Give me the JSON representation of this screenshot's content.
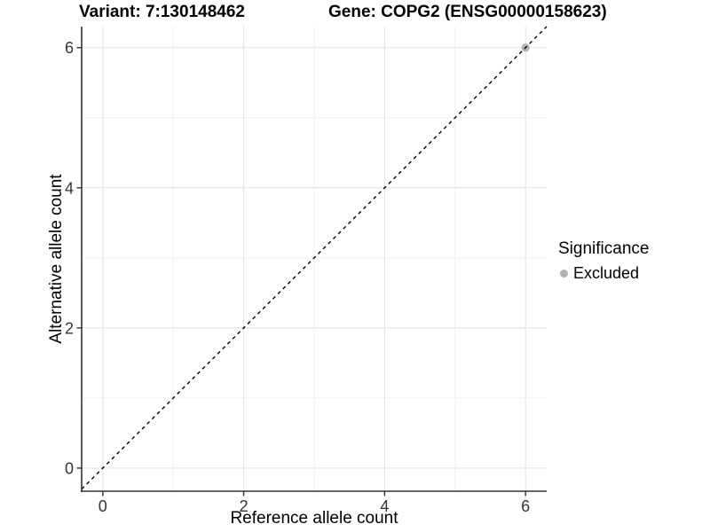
{
  "chart_data": {
    "type": "scatter",
    "title_left": "Variant: 7:130148462",
    "title_right": "Gene: COPG2 (ENSG00000158623)",
    "xlabel": "Reference allele count",
    "ylabel": "Alternative allele count",
    "xlim": [
      -0.3,
      6.3
    ],
    "ylim": [
      -0.33,
      6.3
    ],
    "x_ticks": [
      0,
      2,
      4,
      6
    ],
    "y_ticks": [
      0,
      2,
      4,
      6
    ],
    "x_minor_gridlines": [
      1,
      3,
      5
    ],
    "y_minor_gridlines": [
      1,
      3,
      5
    ],
    "grid": true,
    "identity_line": {
      "slope": 1,
      "intercept": 0,
      "style": "dashed",
      "color": "#000000"
    },
    "series": [
      {
        "name": "Excluded",
        "color": "#b3b3b3",
        "points": [
          {
            "x": 6,
            "y": 6
          }
        ]
      }
    ],
    "legend": {
      "title": "Significance",
      "position": "right",
      "items": [
        {
          "label": "Excluded",
          "color": "#b3b3b3"
        }
      ]
    },
    "colors": {
      "background": "#ffffff",
      "grid_major": "#e4e4e4",
      "grid_minor": "#f1f1f1",
      "axis_line": "#333333",
      "tick_text": "#333333",
      "title_text": "#000000"
    }
  }
}
